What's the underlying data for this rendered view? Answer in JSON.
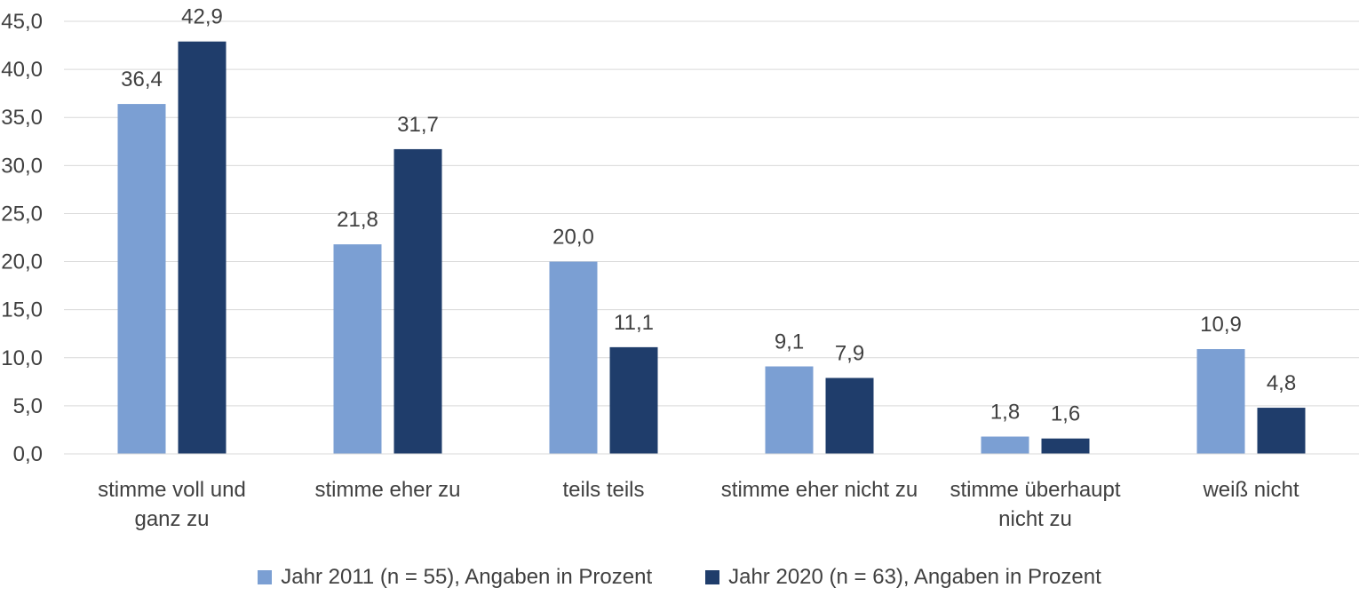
{
  "chart_data": {
    "type": "bar",
    "categories": [
      [
        "stimme voll und",
        "ganz zu"
      ],
      [
        "stimme eher zu"
      ],
      [
        "teils teils"
      ],
      [
        "stimme eher nicht zu"
      ],
      [
        "stimme überhaupt",
        "nicht zu"
      ],
      [
        "weiß nicht"
      ]
    ],
    "series": [
      {
        "name": "Jahr 2011 (n = 55), Angaben in Prozent",
        "color": "#7b9fd3",
        "values": [
          36.4,
          21.8,
          20.0,
          9.1,
          1.8,
          10.9
        ],
        "labels": [
          "36,4",
          "21,8",
          "20,0",
          "9,1",
          "1,8",
          "10,9"
        ]
      },
      {
        "name": "Jahr 2020 (n = 63), Angaben in Prozent",
        "color": "#1f3d6b",
        "values": [
          42.9,
          31.7,
          11.1,
          7.9,
          1.6,
          4.8
        ],
        "labels": [
          "42,9",
          "31,7",
          "11,1",
          "7,9",
          "1,6",
          "4,8"
        ]
      }
    ],
    "ylim": [
      0,
      45
    ],
    "yticks": [
      "0,0",
      "5,0",
      "10,0",
      "15,0",
      "20,0",
      "25,0",
      "30,0",
      "35,0",
      "40,0",
      "45,0"
    ],
    "grid": true,
    "legend_position": "bottom"
  }
}
